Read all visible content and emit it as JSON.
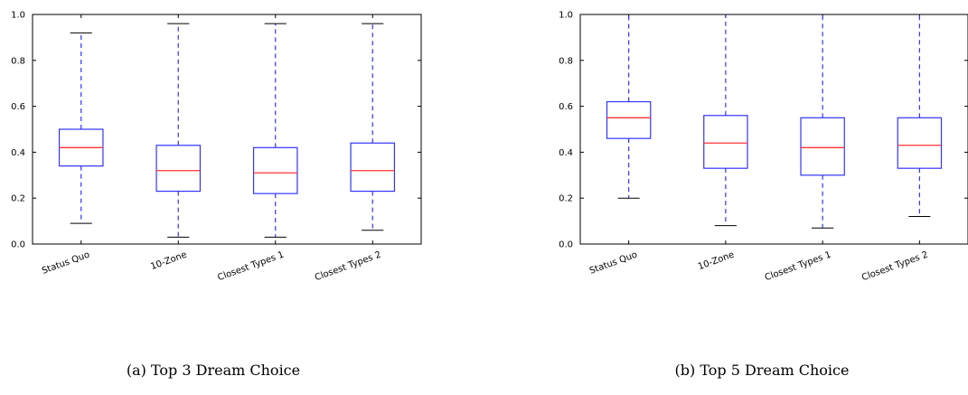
{
  "chart_data": [
    {
      "type": "box",
      "caption": "(a) Top 3 Dream Choice",
      "categories": [
        "Status Quo",
        "10-Zone",
        "Closest Types 1",
        "Closest Types 2"
      ],
      "ylim": [
        0.0,
        1.0
      ],
      "yticks": [
        "0.0",
        "0.2",
        "0.4",
        "0.6",
        "0.8",
        "1.0"
      ],
      "boxes": [
        {
          "whisker_low": 0.09,
          "q1": 0.34,
          "median": 0.42,
          "q3": 0.5,
          "whisker_high": 0.92
        },
        {
          "whisker_low": 0.03,
          "q1": 0.23,
          "median": 0.32,
          "q3": 0.43,
          "whisker_high": 0.96
        },
        {
          "whisker_low": 0.03,
          "q1": 0.22,
          "median": 0.31,
          "q3": 0.42,
          "whisker_high": 0.96
        },
        {
          "whisker_low": 0.06,
          "q1": 0.23,
          "median": 0.32,
          "q3": 0.44,
          "whisker_high": 0.96
        }
      ]
    },
    {
      "type": "box",
      "caption": "(b) Top 5 Dream Choice",
      "categories": [
        "Status Quo",
        "10-Zone",
        "Closest Types 1",
        "Closest Types 2"
      ],
      "ylim": [
        0.0,
        1.0
      ],
      "yticks": [
        "0.0",
        "0.2",
        "0.4",
        "0.6",
        "0.8",
        "1.0"
      ],
      "boxes": [
        {
          "whisker_low": 0.2,
          "q1": 0.46,
          "median": 0.55,
          "q3": 0.62,
          "whisker_high": 1.0
        },
        {
          "whisker_low": 0.08,
          "q1": 0.33,
          "median": 0.44,
          "q3": 0.56,
          "whisker_high": 1.0
        },
        {
          "whisker_low": 0.07,
          "q1": 0.3,
          "median": 0.42,
          "q3": 0.55,
          "whisker_high": 1.0
        },
        {
          "whisker_low": 0.12,
          "q1": 0.33,
          "median": 0.43,
          "q3": 0.55,
          "whisker_high": 1.0
        }
      ]
    }
  ],
  "colors": {
    "box": "#3333ff",
    "whisker": "#3333ff",
    "median": "#ff3333",
    "cap": "#000000",
    "axis": "#000000"
  }
}
